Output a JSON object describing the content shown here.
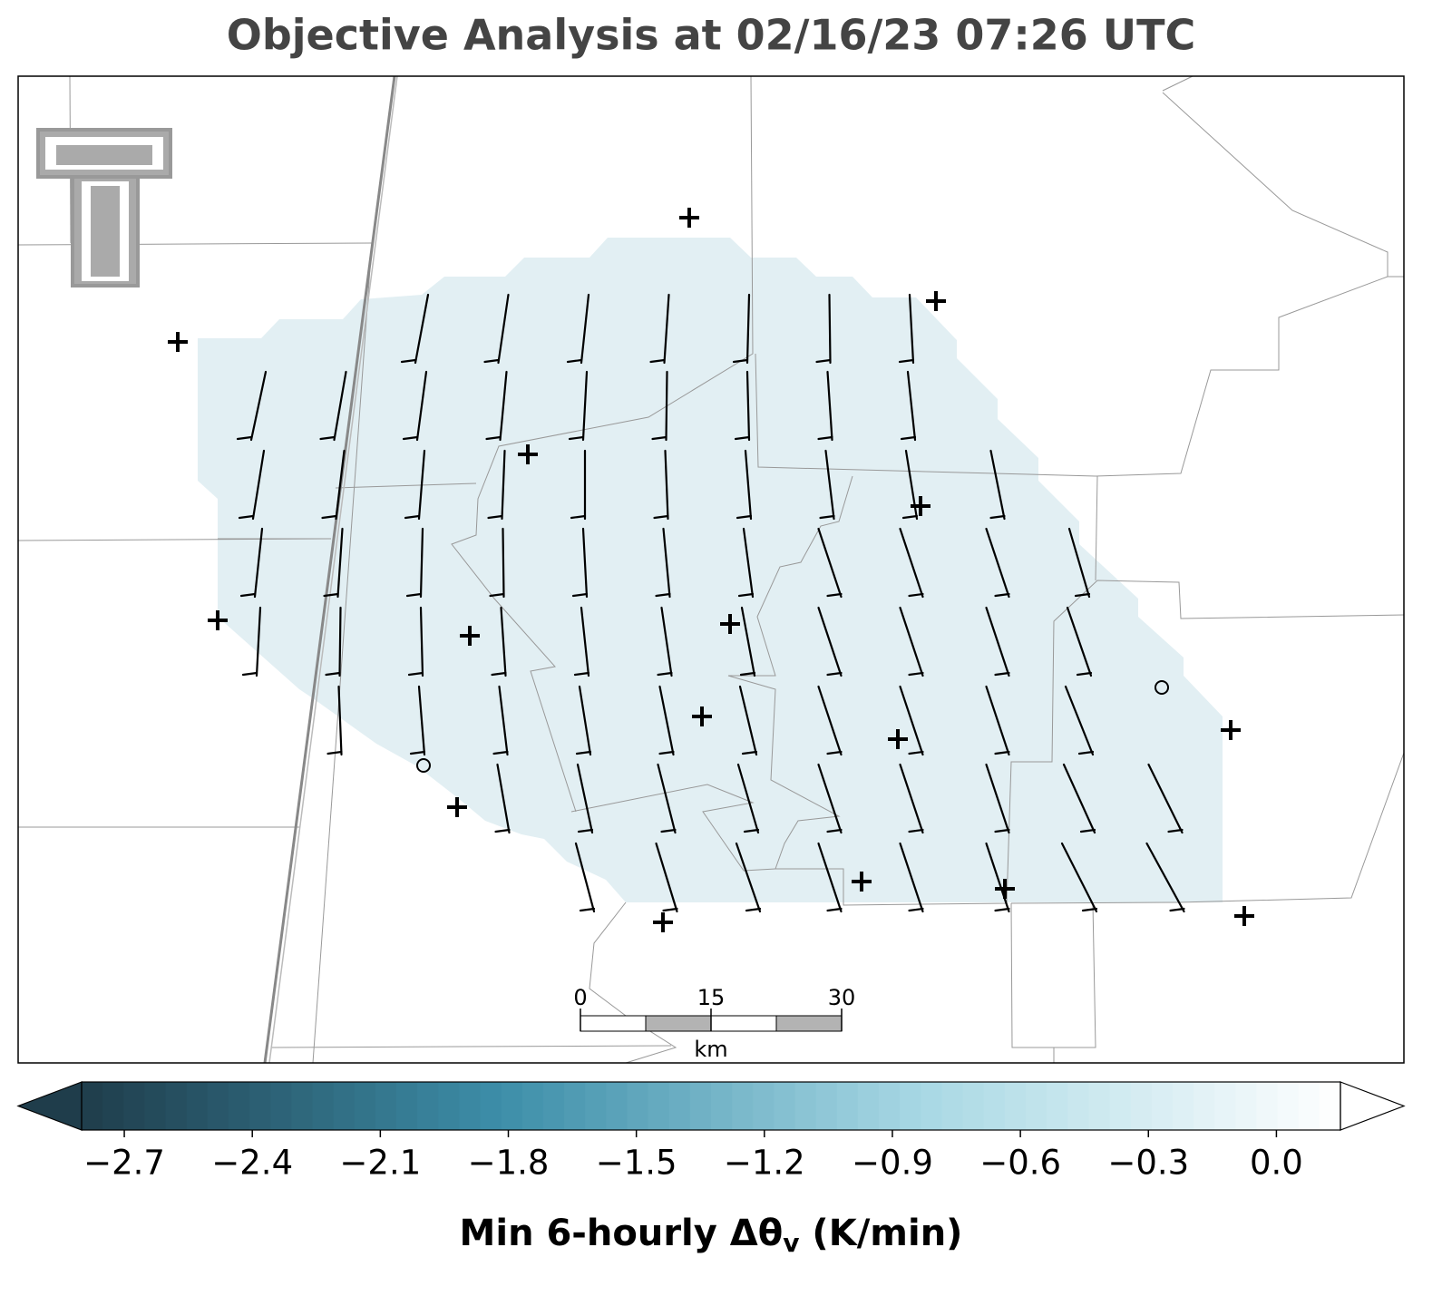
{
  "title": "Objective Analysis at 02/16/23 07:26 UTC",
  "colorbar": {
    "label": {
      "main": "Min 6-hourly Δθ",
      "subscript": "v",
      "suffix": " (K/min)"
    },
    "lim": [
      -2.8,
      0.15
    ],
    "ticks": [
      {
        "value": -2.7,
        "label": "−2.7"
      },
      {
        "value": -2.4,
        "label": "−2.4"
      },
      {
        "value": -2.1,
        "label": "−2.1"
      },
      {
        "value": -1.8,
        "label": "−1.8"
      },
      {
        "value": -1.5,
        "label": "−1.5"
      },
      {
        "value": -1.2,
        "label": "−1.2"
      },
      {
        "value": -0.9,
        "label": "−0.9"
      },
      {
        "value": -0.6,
        "label": "−0.6"
      },
      {
        "value": -0.3,
        "label": "−0.3"
      },
      {
        "value": 0.0,
        "label": "0.0"
      }
    ],
    "colors": [
      "#1f3d4b",
      "#3d8ea9",
      "#a8d8e4",
      "#ffffff"
    ]
  },
  "scale_bar": {
    "ticks": [
      0,
      15,
      30
    ],
    "unit": "km"
  }
}
